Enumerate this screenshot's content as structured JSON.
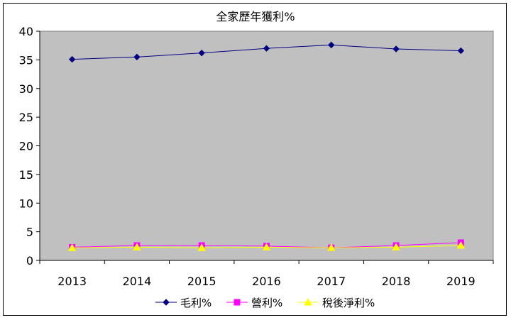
{
  "chart_data": {
    "type": "line",
    "title": "全家歷年獲利%",
    "xlabel": "",
    "ylabel": "",
    "categories": [
      "2013",
      "2014",
      "2015",
      "2016",
      "2017",
      "2018",
      "2019"
    ],
    "ylim": [
      0,
      40
    ],
    "yticks": [
      0,
      5,
      10,
      15,
      20,
      25,
      30,
      35,
      40
    ],
    "grid": false,
    "legend": "bottom",
    "plot_background": "#c0c0c0",
    "series": [
      {
        "name": "毛利%",
        "color": "#000080",
        "marker": "diamond",
        "values": [
          35.1,
          35.5,
          36.2,
          37.0,
          37.6,
          36.9,
          36.6
        ]
      },
      {
        "name": "營利%",
        "color": "#ff00ff",
        "marker": "square",
        "values": [
          2.3,
          2.6,
          2.6,
          2.5,
          2.2,
          2.6,
          3.1
        ]
      },
      {
        "name": "稅後淨利%",
        "color": "#ffff00",
        "marker": "triangle",
        "values": [
          2.2,
          2.3,
          2.2,
          2.3,
          2.2,
          2.3,
          2.6
        ]
      }
    ]
  }
}
